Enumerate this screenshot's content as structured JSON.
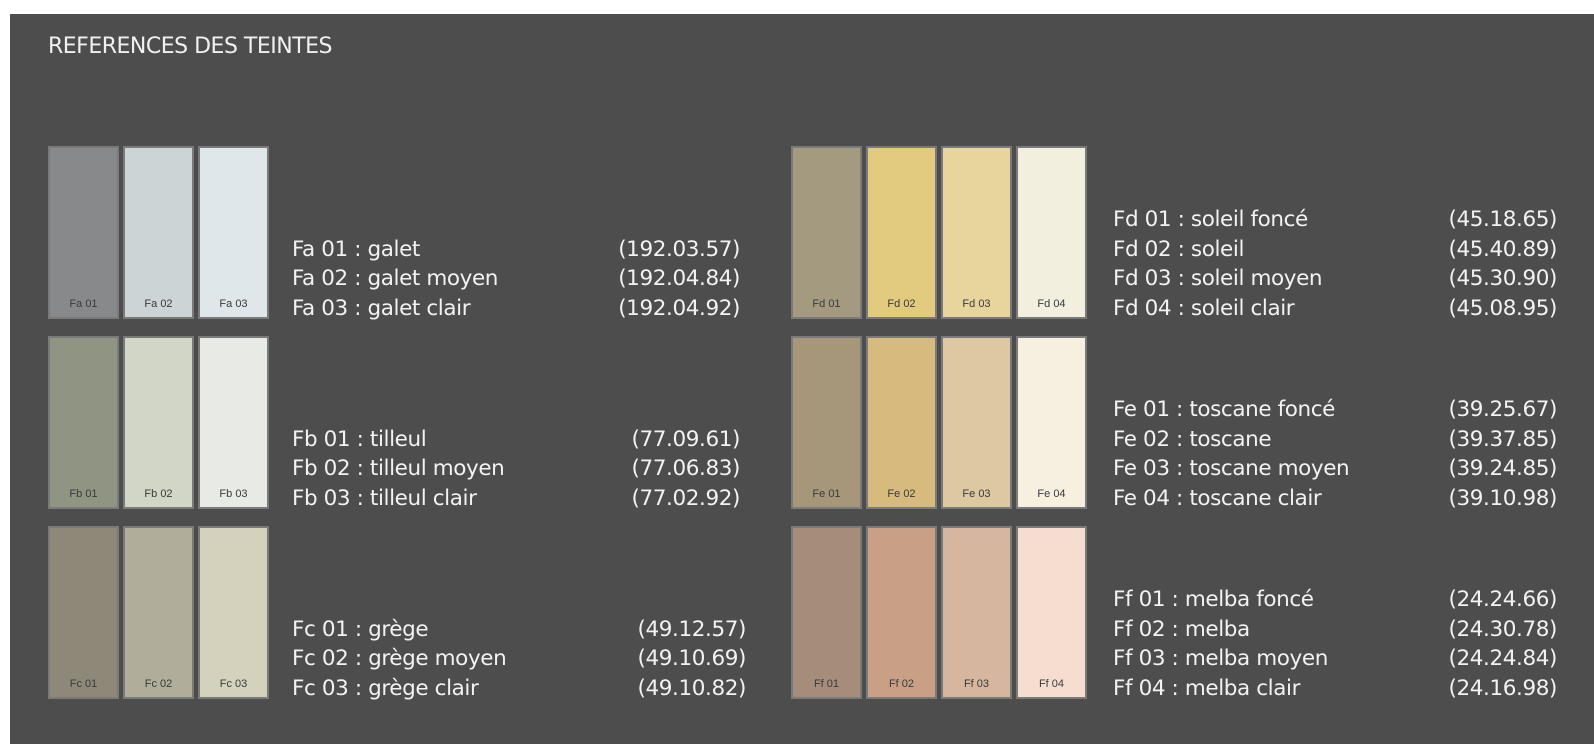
{
  "title": "REFERENCES DES TEINTES",
  "groups": [
    {
      "id": "fa",
      "swatches": [
        {
          "code": "Fa 01",
          "color": "#87898b"
        },
        {
          "code": "Fa 02",
          "color": "#cdd4d6"
        },
        {
          "code": "Fa 03",
          "color": "#dfe7ea"
        }
      ],
      "lines": [
        {
          "name": "Fa 01 : galet",
          "ref": "(192.03.57)"
        },
        {
          "name": "Fa 02 : galet moyen",
          "ref": "(192.04.84)"
        },
        {
          "name": "Fa 03 : galet clair",
          "ref": "(192.04.92)"
        }
      ]
    },
    {
      "id": "fb",
      "swatches": [
        {
          "code": "Fb 01",
          "color": "#8f9483"
        },
        {
          "code": "Fb 02",
          "color": "#d1d6c6"
        },
        {
          "code": "Fb 03",
          "color": "#e8ebe5"
        }
      ],
      "lines": [
        {
          "name": "Fb 01 : tilleul",
          "ref": "(77.09.61)"
        },
        {
          "name": "Fb 02 : tilleul moyen",
          "ref": "(77.06.83)"
        },
        {
          "name": "Fb 03 : tilleul clair",
          "ref": "(77.02.92)"
        }
      ]
    },
    {
      "id": "fc",
      "swatches": [
        {
          "code": "Fc 01",
          "color": "#8d8878"
        },
        {
          "code": "Fc 02",
          "color": "#b0ad9a"
        },
        {
          "code": "Fc 03",
          "color": "#d4d1bd"
        }
      ],
      "lines": [
        {
          "name": "Fc 01 : grège",
          "ref": "(49.12.57)"
        },
        {
          "name": "Fc 02 : grège moyen",
          "ref": "(49.10.69)"
        },
        {
          "name": "Fc 03 : grège clair",
          "ref": "(49.10.82)"
        }
      ]
    },
    {
      "id": "fd",
      "swatches": [
        {
          "code": "Fd 01",
          "color": "#a39a80"
        },
        {
          "code": "Fd 02",
          "color": "#e2cb7f"
        },
        {
          "code": "Fd 03",
          "color": "#e8d59d"
        },
        {
          "code": "Fd 04",
          "color": "#f2efdf"
        }
      ],
      "lines": [
        {
          "name": "Fd 01 : soleil foncé",
          "ref": "(45.18.65)"
        },
        {
          "name": "Fd 02 : soleil",
          "ref": "(45.40.89)"
        },
        {
          "name": "Fd 03 : soleil moyen",
          "ref": "(45.30.90)"
        },
        {
          "name": "Fd 04 : soleil clair",
          "ref": "(45.08.95)"
        }
      ]
    },
    {
      "id": "fe",
      "swatches": [
        {
          "code": "Fe 01",
          "color": "#a6977a"
        },
        {
          "code": "Fe 02",
          "color": "#d7bb7e"
        },
        {
          "code": "Fe 03",
          "color": "#ddc9a1"
        },
        {
          "code": "Fe 04",
          "color": "#f7f0e1"
        }
      ],
      "lines": [
        {
          "name": "Fe 01 : toscane foncé",
          "ref": "(39.25.67)"
        },
        {
          "name": "Fe 02 : toscane",
          "ref": "(39.37.85)"
        },
        {
          "name": "Fe 03 : toscane moyen",
          "ref": "(39.24.85)"
        },
        {
          "name": "Fe 04 : toscane clair",
          "ref": "(39.10.98)"
        }
      ]
    },
    {
      "id": "ff",
      "swatches": [
        {
          "code": "Ff 01",
          "color": "#a68c7a"
        },
        {
          "code": "Ff 02",
          "color": "#c9a086"
        },
        {
          "code": "Ff 03",
          "color": "#d7b69f"
        },
        {
          "code": "Ff 04",
          "color": "#f5decf"
        }
      ],
      "lines": [
        {
          "name": "Ff 01 : melba foncé",
          "ref": "(24.24.66)"
        },
        {
          "name": "Ff 02 : melba",
          "ref": "(24.30.78)"
        },
        {
          "name": "Ff 03 : melba moyen",
          "ref": "(24.24.84)"
        },
        {
          "name": "Ff 04 : melba clair",
          "ref": "(24.16.98)"
        }
      ]
    }
  ]
}
